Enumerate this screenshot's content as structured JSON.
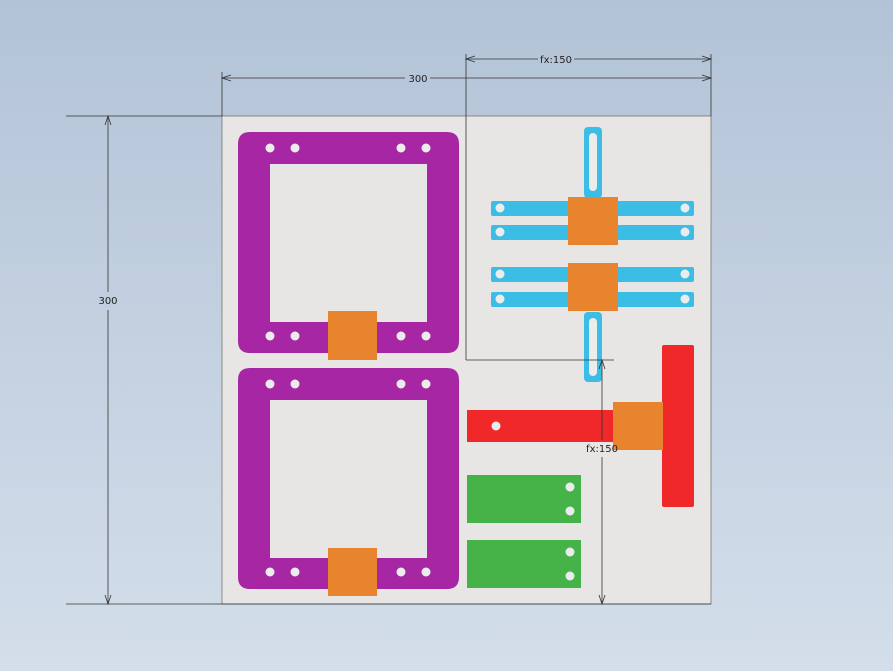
{
  "drawing": {
    "sheet_color": "#e8e6e4",
    "dimensions": {
      "top_overall": "300",
      "left_overall": "300",
      "top_right": "fx:150",
      "right_vertical": "fx:150"
    },
    "colors": {
      "purple": "#a626a4",
      "orange": "#e8832e",
      "cyan": "#3bbde6",
      "red": "#f0282a",
      "green": "#46b348",
      "hole": "#ececec",
      "dim_line": "#333333"
    }
  }
}
